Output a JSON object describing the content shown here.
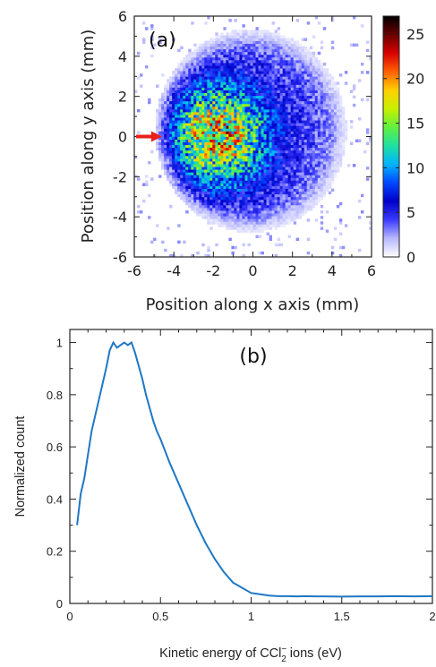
{
  "colors": {
    "colormap": [
      "#ffffff",
      "#b8b8ff",
      "#3b3bff",
      "#0000c8",
      "#0048ff",
      "#00b4ff",
      "#20e0a0",
      "#60f040",
      "#c8f000",
      "#ffd000",
      "#ff6000",
      "#d80000",
      "#6a0000",
      "#000000"
    ],
    "arrow": "#e8201a",
    "line": "#1f77c4"
  },
  "chart_data": [
    {
      "type": "heatmap",
      "panel_label": "(a)",
      "xlabel": "Position along x axis (mm)",
      "ylabel": "Position along y axis (mm)",
      "xlim": [
        -6,
        6
      ],
      "ylim": [
        -6,
        6
      ],
      "xticks": [
        "-6",
        "-4",
        "-2",
        "0",
        "2",
        "4",
        "6"
      ],
      "yticks": [
        "-6",
        "-4",
        "-2",
        "0",
        "2",
        "4",
        "6"
      ],
      "colorbar": {
        "range": [
          0,
          27
        ],
        "ticks": [
          "0",
          "5",
          "10",
          "15",
          "20",
          "25"
        ],
        "tick_values": [
          0,
          5,
          10,
          15,
          20,
          25
        ]
      },
      "distribution": {
        "center_x": -0.1,
        "center_y": 0.3,
        "radius_x": 4.4,
        "radius_y": 4.6,
        "peak_x": -1.8,
        "peak_y": 0.1,
        "peak_count": 18
      },
      "arrow": {
        "y": 0,
        "x_from": -6,
        "x_to": -4.6
      }
    },
    {
      "type": "line",
      "panel_label": "(b)",
      "xlabel": "Kinetic energy of CCl",
      "xlabel_sub": "2",
      "xlabel_sup": "−",
      "xlabel_suffix": " ions (eV)",
      "ylabel": "Normalized count",
      "xlim": [
        0,
        2
      ],
      "ylim": [
        0,
        1.05
      ],
      "xticks": [
        "0",
        "0.5",
        "1",
        "1.5",
        "2"
      ],
      "xtick_values": [
        0,
        0.5,
        1,
        1.5,
        2
      ],
      "yticks": [
        "0",
        "0.2",
        "0.4",
        "0.6",
        "0.8",
        "1"
      ],
      "ytick_values": [
        0,
        0.2,
        0.4,
        0.6,
        0.8,
        1
      ],
      "series": [
        {
          "x": [
            0.04,
            0.06,
            0.08,
            0.1,
            0.12,
            0.14,
            0.16,
            0.18,
            0.2,
            0.22,
            0.24,
            0.26,
            0.28,
            0.3,
            0.32,
            0.34,
            0.36,
            0.38,
            0.4,
            0.42,
            0.44,
            0.46,
            0.48,
            0.5,
            0.55,
            0.6,
            0.65,
            0.7,
            0.75,
            0.8,
            0.85,
            0.9,
            0.95,
            1.0,
            1.05,
            1.1,
            1.15,
            1.2,
            1.25,
            1.3,
            1.35,
            1.4,
            1.5,
            1.6,
            1.7,
            1.8,
            1.9,
            2.0
          ],
          "y": [
            0.3,
            0.42,
            0.48,
            0.57,
            0.66,
            0.72,
            0.78,
            0.84,
            0.9,
            0.97,
            1.0,
            0.98,
            0.99,
            1.0,
            0.99,
            1.0,
            0.96,
            0.91,
            0.86,
            0.8,
            0.75,
            0.7,
            0.66,
            0.63,
            0.54,
            0.46,
            0.38,
            0.3,
            0.23,
            0.17,
            0.12,
            0.08,
            0.06,
            0.04,
            0.035,
            0.03,
            0.028,
            0.028,
            0.027,
            0.028,
            0.027,
            0.027,
            0.026,
            0.027,
            0.027,
            0.028,
            0.027,
            0.028
          ]
        }
      ]
    }
  ]
}
